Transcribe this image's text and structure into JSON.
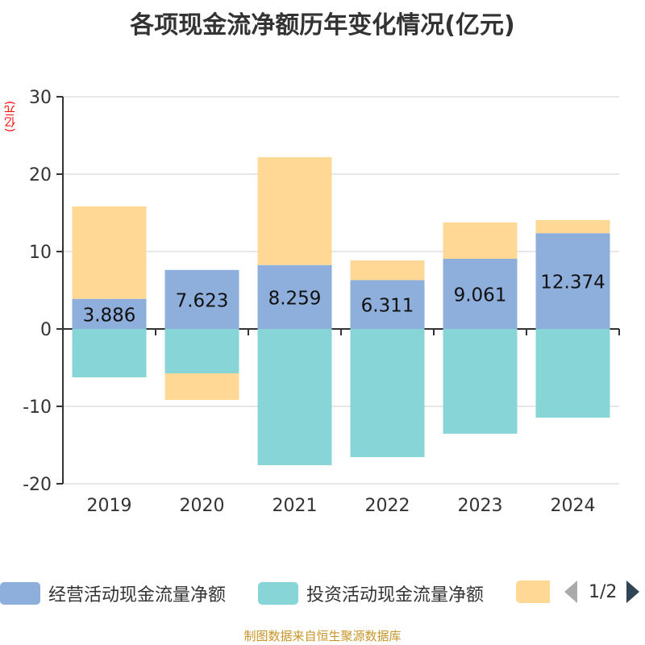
{
  "chart_data": {
    "type": "bar",
    "stacked": true,
    "title": "各项现金流净额历年变化情况(亿元)",
    "ylabel": "(亿元)",
    "categories": [
      "2019",
      "2020",
      "2021",
      "2022",
      "2023",
      "2024"
    ],
    "ylim": [
      -20,
      30
    ],
    "yticks": [
      -20,
      -10,
      0,
      10,
      20,
      30
    ],
    "grid": true,
    "legend_position": "bottom",
    "series": [
      {
        "name": "经营活动现金流量净额",
        "color": "#8eaedb",
        "values": [
          3.886,
          7.623,
          8.259,
          6.311,
          9.061,
          12.374
        ],
        "labels_shown": true
      },
      {
        "name": "投资活动现金流量净额",
        "color": "#88d5d8",
        "values": [
          -6.25,
          -5.73,
          -17.6,
          -16.56,
          -13.54,
          -11.46
        ]
      },
      {
        "color": "#ffd896",
        "values": [
          11.95,
          -3.44,
          13.93,
          2.54,
          4.69,
          1.69
        ]
      }
    ]
  },
  "legend": {
    "page": "1/2"
  },
  "footer": "制图数据来自恒生聚源数据库"
}
